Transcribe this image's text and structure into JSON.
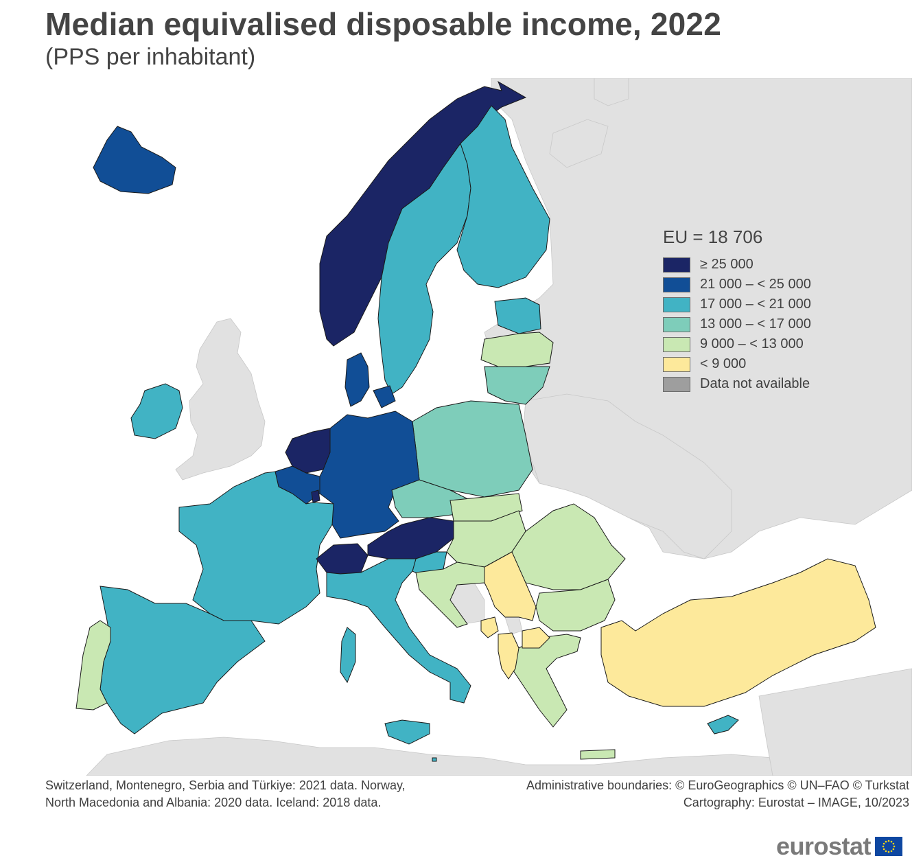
{
  "title": "Median equivalised disposable income, 2022",
  "subtitle": "(PPS per inhabitant)",
  "legend": {
    "title": "EU = 18 706",
    "classes": [
      {
        "label": "≥ 25 000",
        "color": "#1b2565"
      },
      {
        "label": "21 000 – < 25 000",
        "color": "#114e96"
      },
      {
        "label": "17 000 – < 21 000",
        "color": "#41b3c4"
      },
      {
        "label": "13 000 – < 17 000",
        "color": "#7ecdba"
      },
      {
        "label": "9 000 – < 13 000",
        "color": "#c9e8b3"
      },
      {
        "label": "< 9 000",
        "color": "#fde99b"
      },
      {
        "label": "Data not available",
        "color": "#9e9e9e"
      }
    ]
  },
  "colors": {
    "non_covered_land": "#e1e1e1",
    "sea": "#ffffff",
    "border": "#1a1a1a"
  },
  "notes": {
    "left_line1": "Switzerland, Montenegro, Serbia and Türkiye: 2021 data. Norway,",
    "left_line2": "North Macedonia and Albania: 2020 data. Iceland: 2018 data.",
    "right_line1": "Administrative boundaries: © EuroGeographics © UN–FAO © Turkstat",
    "right_line2": "Cartography: Eurostat – IMAGE, 10/2023"
  },
  "logo": {
    "text": "eurostat",
    "flag_icon": "eu-flag-icon"
  },
  "map_regions": [
    {
      "name": "norway",
      "class": 0
    },
    {
      "name": "iceland",
      "class": 1
    },
    {
      "name": "sweden",
      "class": 2
    },
    {
      "name": "finland",
      "class": 2
    },
    {
      "name": "estonia",
      "class": 2
    },
    {
      "name": "latvia",
      "class": 4
    },
    {
      "name": "lithuania",
      "class": 3
    },
    {
      "name": "poland",
      "class": 3
    },
    {
      "name": "denmark",
      "class": 1
    },
    {
      "name": "ireland",
      "class": 2
    },
    {
      "name": "netherlands",
      "class": 0
    },
    {
      "name": "belgium",
      "class": 1
    },
    {
      "name": "luxembourg",
      "class": 0
    },
    {
      "name": "germany",
      "class": 1
    },
    {
      "name": "france",
      "class": 2
    },
    {
      "name": "spain",
      "class": 2
    },
    {
      "name": "portugal",
      "class": 4
    },
    {
      "name": "switzerland",
      "class": 0
    },
    {
      "name": "austria",
      "class": 0
    },
    {
      "name": "czechia",
      "class": 3
    },
    {
      "name": "slovakia",
      "class": 4
    },
    {
      "name": "hungary",
      "class": 4
    },
    {
      "name": "slovenia",
      "class": 2
    },
    {
      "name": "croatia",
      "class": 4
    },
    {
      "name": "italy",
      "class": 2
    },
    {
      "name": "romania",
      "class": 4
    },
    {
      "name": "bulgaria",
      "class": 4
    },
    {
      "name": "greece",
      "class": 4
    },
    {
      "name": "cyprus",
      "class": 2
    },
    {
      "name": "malta",
      "class": 2
    },
    {
      "name": "serbia",
      "class": 5
    },
    {
      "name": "montenegro",
      "class": 5
    },
    {
      "name": "albania",
      "class": 5
    },
    {
      "name": "north-macedonia",
      "class": 5
    },
    {
      "name": "turkiye",
      "class": 5
    }
  ]
}
